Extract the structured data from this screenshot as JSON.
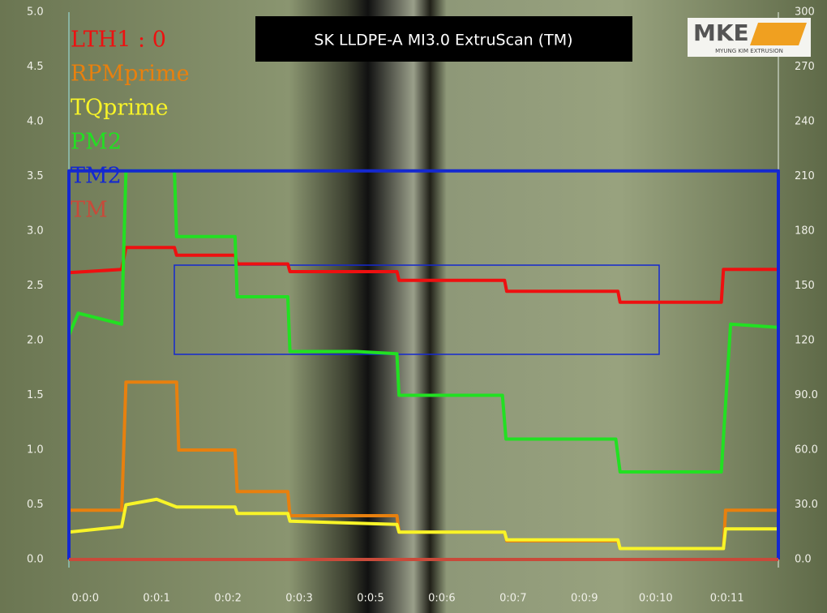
{
  "chart_data": {
    "type": "line",
    "title": "SK LLDPE-A MI3.0 ExtruScan (TM)",
    "logo": {
      "mark": "MKE",
      "subtitle": "MYUNG KIM EXTRUSION"
    },
    "xlim": [
      -0.23,
      9.72
    ],
    "xticks": [
      {
        "value": 0,
        "label": "0:0:0"
      },
      {
        "value": 1,
        "label": "0:0:1"
      },
      {
        "value": 2,
        "label": "0:0:2"
      },
      {
        "value": 3,
        "label": "0:0:3"
      },
      {
        "value": 4,
        "label": "0:0:5"
      },
      {
        "value": 5,
        "label": "0:0:6"
      },
      {
        "value": 6,
        "label": "0:0:7"
      },
      {
        "value": 7,
        "label": "0:0:9"
      },
      {
        "value": 8,
        "label": "0:0:10"
      },
      {
        "value": 9,
        "label": "0:0:11"
      }
    ],
    "ylim": [
      0,
      5
    ],
    "yticks": [
      {
        "value": 0,
        "label": "0.0"
      },
      {
        "value": 0.5,
        "label": "0.5"
      },
      {
        "value": 1,
        "label": "1.0"
      },
      {
        "value": 1.5,
        "label": "1.5"
      },
      {
        "value": 2,
        "label": "2.0"
      },
      {
        "value": 2.5,
        "label": "2.5"
      },
      {
        "value": 3,
        "label": "3.0"
      },
      {
        "value": 3.5,
        "label": "3.5"
      },
      {
        "value": 4,
        "label": "4.0"
      },
      {
        "value": 4.5,
        "label": "4.5"
      },
      {
        "value": 5,
        "label": "5.0"
      }
    ],
    "y2lim": [
      0,
      300
    ],
    "y2ticks": [
      {
        "value": 0,
        "label": "0.0"
      },
      {
        "value": 30,
        "label": "30.0"
      },
      {
        "value": 60,
        "label": "60.0"
      },
      {
        "value": 90,
        "label": "90.0"
      },
      120,
      150,
      180,
      210,
      240,
      270,
      300
    ],
    "series": [
      {
        "name": "LTH1 : 0",
        "color": "#ee1010",
        "x": [
          -0.23,
          0.51,
          0.57,
          1.25,
          1.28,
          2.1,
          2.13,
          2.84,
          2.87,
          4.37,
          4.4,
          5.88,
          5.91,
          7.47,
          7.5,
          8.92,
          8.95,
          9.72
        ],
        "values": [
          2.62,
          2.65,
          2.85,
          2.85,
          2.78,
          2.78,
          2.7,
          2.7,
          2.63,
          2.63,
          2.55,
          2.55,
          2.45,
          2.45,
          2.35,
          2.35,
          2.65,
          2.65
        ]
      },
      {
        "name": "RPMprime",
        "color": "#e8800e",
        "x": [
          -0.23,
          0.51,
          0.57,
          1.28,
          1.31,
          2.1,
          2.13,
          2.84,
          2.87,
          4.37,
          4.4,
          5.88,
          5.91,
          7.47,
          7.5,
          8.95,
          8.98,
          9.72
        ],
        "values": [
          0.45,
          0.45,
          1.62,
          1.62,
          1.0,
          1.0,
          0.62,
          0.62,
          0.4,
          0.4,
          0.25,
          0.25,
          0.17,
          0.17,
          0.1,
          0.1,
          0.45,
          0.45
        ]
      },
      {
        "name": "TQprime",
        "color": "#f8f428",
        "x": [
          -0.23,
          0.51,
          0.57,
          1.0,
          1.28,
          2.1,
          2.13,
          2.84,
          2.87,
          4.37,
          4.4,
          5.88,
          5.91,
          7.47,
          7.5,
          8.95,
          8.98,
          9.72
        ],
        "values": [
          0.25,
          0.3,
          0.5,
          0.55,
          0.48,
          0.48,
          0.42,
          0.42,
          0.35,
          0.32,
          0.25,
          0.25,
          0.18,
          0.18,
          0.1,
          0.1,
          0.28,
          0.28
        ]
      },
      {
        "name": "PM2",
        "color": "#22e022",
        "x": [
          -0.23,
          -0.1,
          0.51,
          0.57,
          1.25,
          1.28,
          2.1,
          2.13,
          2.84,
          2.87,
          3.8,
          4.37,
          4.4,
          5.85,
          5.9,
          7.44,
          7.5,
          8.92,
          9.05,
          9.72
        ],
        "values": [
          2.05,
          2.25,
          2.15,
          3.55,
          3.55,
          2.95,
          2.95,
          2.4,
          2.4,
          1.9,
          1.9,
          1.88,
          1.5,
          1.5,
          1.1,
          1.1,
          0.8,
          0.8,
          2.15,
          2.12
        ]
      },
      {
        "name": "TM2",
        "color": "#1428d0",
        "x": [
          -0.23,
          -0.23,
          9.72,
          9.72
        ],
        "values": [
          0,
          3.55,
          3.55,
          0
        ]
      },
      {
        "name": "TM",
        "color": "#c84a3a",
        "x": [
          -0.23,
          9.72
        ],
        "values": [
          0,
          0
        ]
      }
    ]
  }
}
